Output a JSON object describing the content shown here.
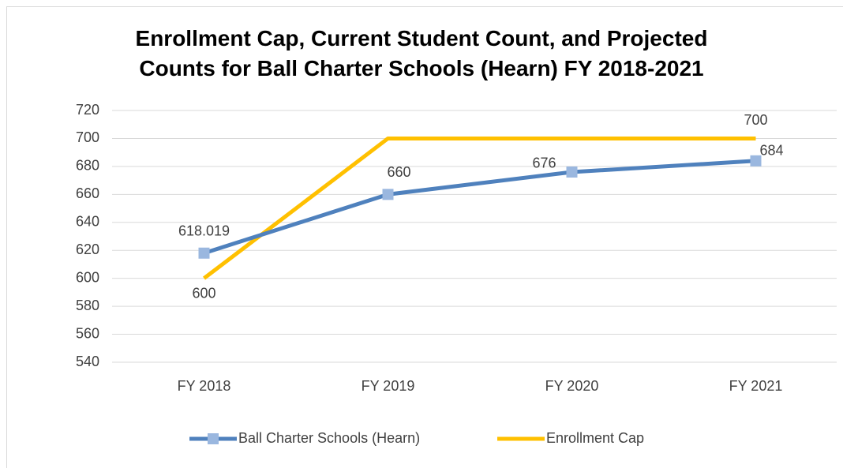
{
  "chart_data": {
    "type": "line",
    "title": "Enrollment Cap, Current Student Count, and Projected Counts for Ball Charter Schools (Hearn) FY 2018-2021",
    "categories": [
      "FY 2018",
      "FY 2019",
      "FY 2020",
      "FY 2021"
    ],
    "series": [
      {
        "name": "Ball Charter Schools (Hearn)",
        "color": "#4f81bd",
        "marker_color": "#9ab7df",
        "values": [
          618.019,
          660,
          676,
          684
        ],
        "value_labels": [
          "618.019",
          "660",
          "676",
          "684"
        ]
      },
      {
        "name": "Enrollment Cap",
        "color": "#ffc000",
        "values": [
          600,
          700,
          700,
          700
        ],
        "value_labels": [
          "600",
          null,
          null,
          "700"
        ]
      }
    ],
    "ylim": [
      540,
      720
    ],
    "yticks": [
      540,
      560,
      580,
      600,
      620,
      640,
      660,
      680,
      700,
      720
    ],
    "grid": true,
    "legend": "bottom"
  }
}
